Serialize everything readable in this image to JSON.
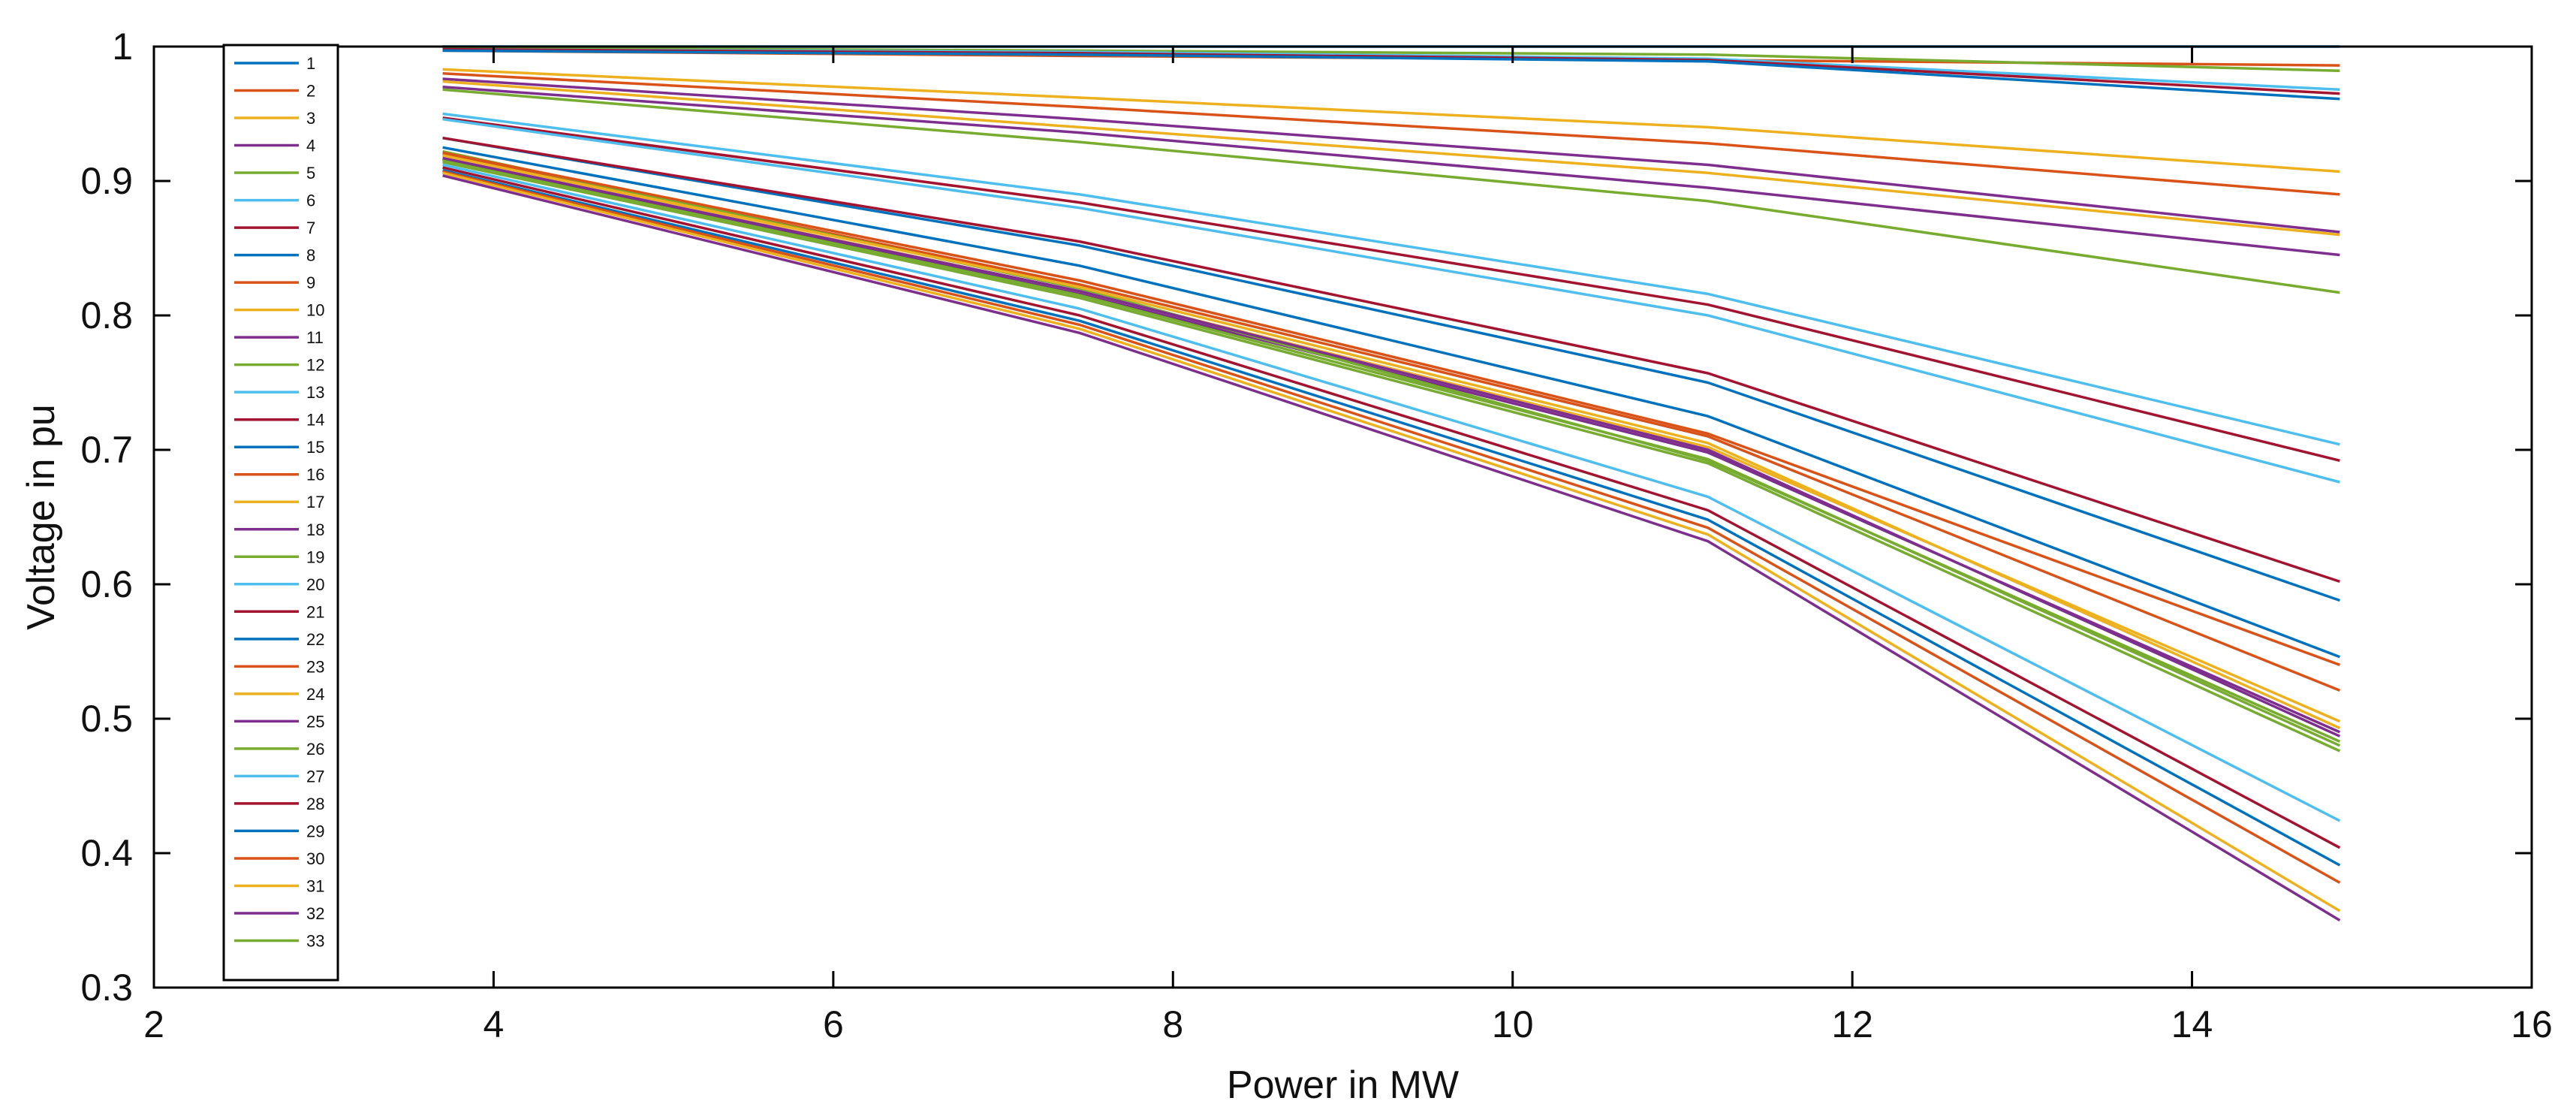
{
  "chart_data": {
    "type": "line",
    "title": "",
    "xlabel": "Power in MW",
    "ylabel": "Voltage in pu",
    "xlim": [
      2,
      16
    ],
    "ylim": [
      0.3,
      1
    ],
    "xticks": [
      2,
      4,
      6,
      8,
      10,
      12,
      14,
      16
    ],
    "yticks": [
      0.3,
      0.4,
      0.5,
      0.6,
      0.7,
      0.8,
      0.9,
      1
    ],
    "x": [
      3.7,
      7.45,
      11.15,
      14.87
    ],
    "grid": false,
    "legend_position": "top-left, inside",
    "series": [
      {
        "name": "1",
        "color": "#0072BD",
        "values": [
          1.0,
          1.0,
          1.0,
          1.0
        ]
      },
      {
        "name": "2",
        "color": "#D95319",
        "values": [
          0.997,
          0.993,
          0.99,
          0.986
        ]
      },
      {
        "name": "3",
        "color": "#EDB120",
        "values": [
          0.983,
          0.962,
          0.94,
          0.907
        ]
      },
      {
        "name": "4",
        "color": "#7E2F8E",
        "values": [
          0.976,
          0.946,
          0.912,
          0.862
        ]
      },
      {
        "name": "5",
        "color": "#77AC30",
        "values": [
          0.968,
          0.929,
          0.885,
          0.817
        ]
      },
      {
        "name": "6",
        "color": "#4DBEEE",
        "values": [
          0.95,
          0.89,
          0.816,
          0.704
        ]
      },
      {
        "name": "7",
        "color": "#A2142F",
        "values": [
          0.947,
          0.884,
          0.808,
          0.692
        ]
      },
      {
        "name": "8",
        "color": "#0072BD",
        "values": [
          0.932,
          0.852,
          0.75,
          0.588
        ]
      },
      {
        "name": "9",
        "color": "#D95319",
        "values": [
          0.92,
          0.823,
          0.71,
          0.521
        ]
      },
      {
        "name": "10",
        "color": "#EDB120",
        "values": [
          0.918,
          0.818,
          0.702,
          0.498
        ]
      },
      {
        "name": "11",
        "color": "#7E2F8E",
        "values": [
          0.916,
          0.816,
          0.698,
          0.49
        ]
      },
      {
        "name": "12",
        "color": "#77AC30",
        "values": [
          0.914,
          0.813,
          0.69,
          0.476
        ]
      },
      {
        "name": "13",
        "color": "#4DBEEE",
        "values": [
          0.912,
          0.805,
          0.665,
          0.424
        ]
      },
      {
        "name": "14",
        "color": "#A2142F",
        "values": [
          0.91,
          0.8,
          0.655,
          0.404
        ]
      },
      {
        "name": "15",
        "color": "#0072BD",
        "values": [
          0.908,
          0.796,
          0.648,
          0.391
        ]
      },
      {
        "name": "16",
        "color": "#D95319",
        "values": [
          0.907,
          0.793,
          0.642,
          0.378
        ]
      },
      {
        "name": "17",
        "color": "#EDB120",
        "values": [
          0.906,
          0.79,
          0.637,
          0.357
        ]
      },
      {
        "name": "18",
        "color": "#7E2F8E",
        "values": [
          0.904,
          0.787,
          0.632,
          0.35
        ]
      },
      {
        "name": "19",
        "color": "#77AC30",
        "values": [
          0.999,
          0.997,
          0.994,
          0.982
        ]
      },
      {
        "name": "20",
        "color": "#4DBEEE",
        "values": [
          0.998,
          0.996,
          0.991,
          0.968
        ]
      },
      {
        "name": "21",
        "color": "#A2142F",
        "values": [
          0.998,
          0.995,
          0.99,
          0.965
        ]
      },
      {
        "name": "22",
        "color": "#0072BD",
        "values": [
          0.997,
          0.994,
          0.989,
          0.961
        ]
      },
      {
        "name": "23",
        "color": "#D95319",
        "values": [
          0.98,
          0.955,
          0.928,
          0.89
        ]
      },
      {
        "name": "24",
        "color": "#EDB120",
        "values": [
          0.974,
          0.94,
          0.906,
          0.86
        ]
      },
      {
        "name": "25",
        "color": "#7E2F8E",
        "values": [
          0.97,
          0.936,
          0.895,
          0.845
        ]
      },
      {
        "name": "26",
        "color": "#77AC30",
        "values": [
          0.922,
          0.82,
          0.692,
          0.483
        ]
      },
      {
        "name": "27",
        "color": "#4DBEEE",
        "values": [
          0.946,
          0.88,
          0.8,
          0.676
        ]
      },
      {
        "name": "28",
        "color": "#A2142F",
        "values": [
          0.932,
          0.855,
          0.757,
          0.602
        ]
      },
      {
        "name": "29",
        "color": "#0072BD",
        "values": [
          0.925,
          0.837,
          0.725,
          0.546
        ]
      },
      {
        "name": "30",
        "color": "#D95319",
        "values": [
          0.921,
          0.826,
          0.712,
          0.54
        ]
      },
      {
        "name": "31",
        "color": "#EDB120",
        "values": [
          0.919,
          0.821,
          0.705,
          0.493
        ]
      },
      {
        "name": "32",
        "color": "#7E2F8E",
        "values": [
          0.917,
          0.818,
          0.7,
          0.487
        ]
      },
      {
        "name": "33",
        "color": "#77AC30",
        "values": [
          0.915,
          0.815,
          0.693,
          0.48
        ]
      }
    ]
  }
}
